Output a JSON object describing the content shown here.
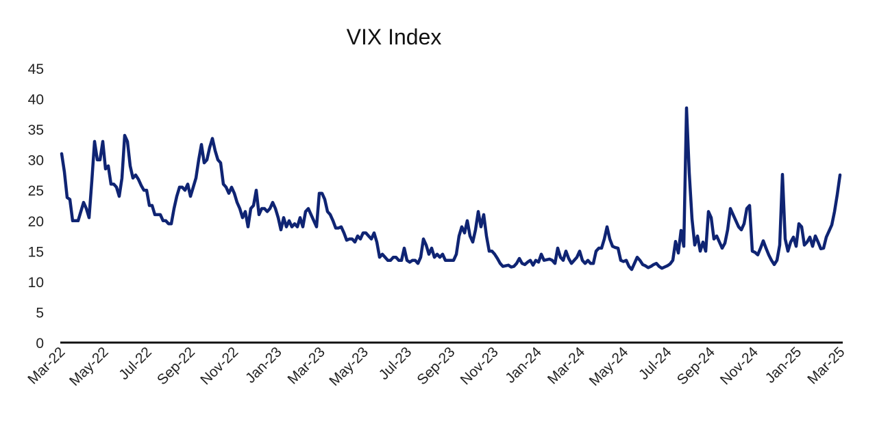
{
  "chart_data": {
    "type": "line",
    "title": "VIX Index",
    "xlabel": "",
    "ylabel": "",
    "ylim": [
      0,
      45
    ],
    "yticks": [
      "0",
      "5",
      "10",
      "15",
      "20",
      "25",
      "30",
      "35",
      "40",
      "45"
    ],
    "x_range": [
      "Mar-22",
      "Mar-25"
    ],
    "x_tick_labels": [
      "Mar-22",
      "May-22",
      "Jul-22",
      "Sep-22",
      "Nov-22",
      "Jan-23",
      "Mar-23",
      "May-23",
      "Jul-23",
      "Sep-23",
      "Nov-23",
      "Jan-24",
      "Mar-24",
      "May-24",
      "Jul-24",
      "Sep-24",
      "Nov-24",
      "Jan-25",
      "Mar-25"
    ],
    "grid": false,
    "legend": "none",
    "line_color": "#0f2473",
    "series": [
      {
        "name": "VIX Index",
        "sampling": "evenly spaced from Mar-22 to Mar-25",
        "values": [
          31,
          28,
          23.8,
          23.5,
          20,
          20,
          20,
          21.5,
          23,
          22,
          20.5,
          26.5,
          33,
          30,
          30,
          33,
          28.5,
          29,
          26,
          26,
          25.5,
          24,
          27,
          34,
          33,
          29,
          27,
          27.5,
          26.8,
          25.8,
          25,
          25,
          22.5,
          22.5,
          21,
          21,
          21,
          20,
          20,
          19.5,
          19.5,
          22,
          24,
          25.5,
          25.5,
          25,
          26,
          24,
          25.5,
          27,
          30,
          32.5,
          29.5,
          30,
          32,
          33.5,
          31.5,
          30,
          29.5,
          26,
          25.5,
          24.5,
          25.5,
          24.5,
          23,
          22,
          20.5,
          21.5,
          19,
          22,
          22.5,
          25,
          21,
          22,
          22,
          21.5,
          22,
          23,
          22,
          20.5,
          18.5,
          20.5,
          19,
          20,
          19,
          19.5,
          19,
          20.5,
          19,
          21.5,
          22,
          21,
          20,
          19,
          24.5,
          24.5,
          23.5,
          21.5,
          21,
          20,
          18.8,
          18.8,
          19,
          18,
          16.8,
          17,
          17,
          16.5,
          17.5,
          17,
          18,
          18,
          17.5,
          17,
          18,
          16.5,
          14,
          14.5,
          14,
          13.5,
          13.5,
          14,
          14,
          13.5,
          13.5,
          15.5,
          13.5,
          13.2,
          13.5,
          13.5,
          13,
          14,
          17,
          16,
          14.5,
          15.5,
          14,
          14.5,
          14,
          14.5,
          13.5,
          13.5,
          13.5,
          13.5,
          14.5,
          17.5,
          19,
          18,
          20,
          17.5,
          16.5,
          18.5,
          21.5,
          19,
          21,
          17.5,
          15,
          15,
          14.5,
          13.8,
          13,
          12.5,
          12.6,
          12.7,
          12.4,
          12.5,
          13,
          13.8,
          13,
          12.8,
          13.2,
          13.5,
          12.7,
          13.5,
          13.2,
          14.5,
          13.5,
          13.6,
          13.7,
          13.5,
          13,
          15.5,
          14,
          13.5,
          15,
          13.8,
          13,
          13.5,
          14,
          15,
          13.5,
          13,
          13.5,
          13,
          13,
          15,
          15.5,
          15.5,
          17,
          19,
          17,
          15.8,
          15.6,
          15.5,
          13.5,
          13.3,
          13.5,
          12.5,
          12,
          13,
          14,
          13.5,
          12.8,
          12.6,
          12.3,
          12.5,
          12.8,
          13,
          12.5,
          12.2,
          12.4,
          12.6,
          12.9,
          13.5,
          16.6,
          14.7,
          18.4,
          15.8,
          38.5,
          27.8,
          20.3,
          16,
          17.5,
          15,
          16.5,
          15,
          21.5,
          20.5,
          17,
          17.5,
          16.5,
          15.5,
          16.3,
          18.5,
          22,
          21,
          20,
          19,
          18.5,
          19.5,
          22,
          22.5,
          15,
          14.8,
          14.4,
          15.5,
          16.7,
          15.5,
          14.4,
          13.5,
          12.8,
          13.5,
          16,
          27.6,
          17,
          15,
          16.5,
          17.3,
          15.8,
          19.5,
          19,
          16,
          16.5,
          17.3,
          15.8,
          17.5,
          16.5,
          15.4,
          15.5,
          17.3,
          18.3,
          19.3,
          21.5,
          24.3,
          27.5
        ]
      }
    ]
  }
}
